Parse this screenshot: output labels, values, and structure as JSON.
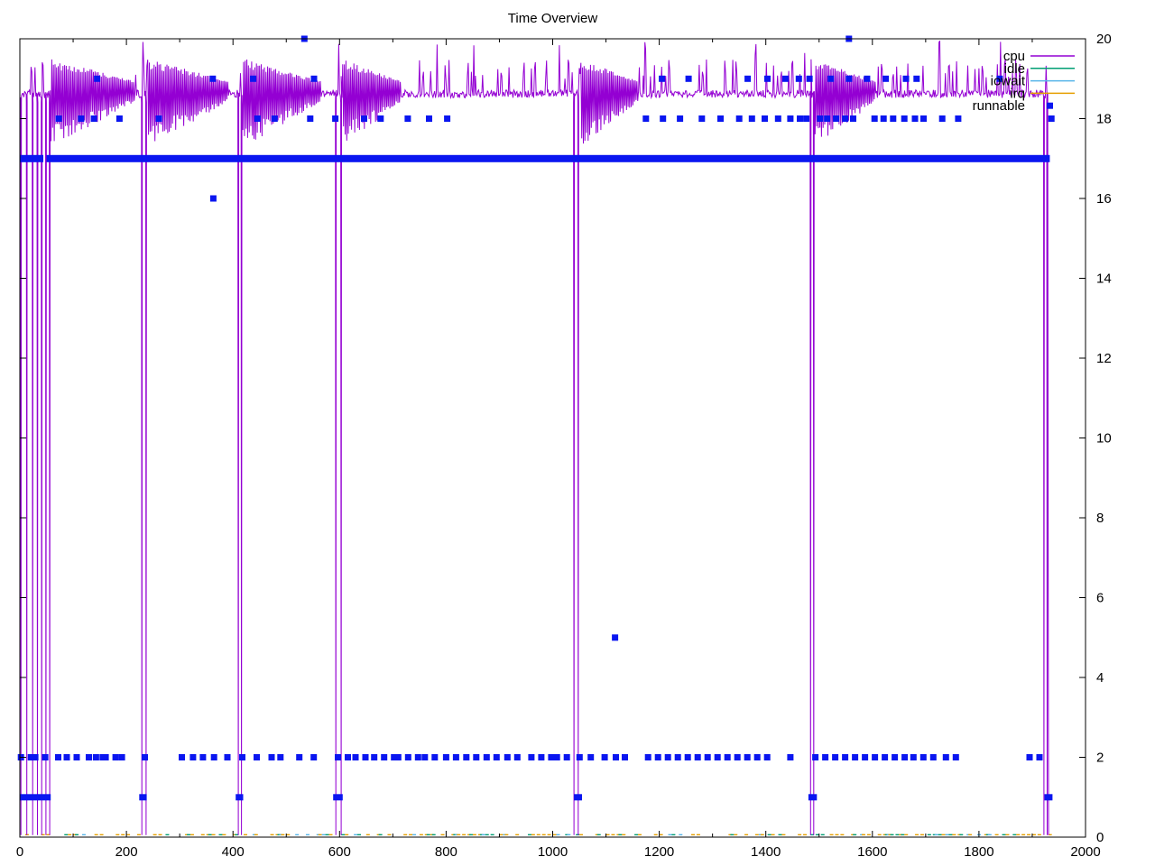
{
  "chart_data": {
    "type": "line+scatter",
    "title": "Time Overview",
    "xlabel": "",
    "ylabel": "",
    "xlim": [
      0,
      2000
    ],
    "ylim": [
      0,
      20
    ],
    "x_major_ticks": [
      0,
      200,
      400,
      600,
      800,
      1000,
      1200,
      1400,
      1600,
      1800,
      2000
    ],
    "x_minor_ticks": [
      100,
      300,
      500,
      700,
      900,
      1100,
      1300,
      1500,
      1700,
      1900
    ],
    "y_major_ticks": [
      0,
      2,
      4,
      6,
      8,
      10,
      12,
      14,
      16,
      18,
      20
    ],
    "y_labels_side": "right",
    "grid": false,
    "axis_color": "#000000",
    "text_color": "#000000",
    "legend": {
      "position": "top-right-inside",
      "entries": [
        {
          "label": "cpu",
          "color": "#9400d3",
          "sample": "line"
        },
        {
          "label": "idle",
          "color": "#009e73",
          "sample": "line"
        },
        {
          "label": "iowait",
          "color": "#56b4e9",
          "sample": "line"
        },
        {
          "label": "irq",
          "color": "#e69f00",
          "sample": "line"
        },
        {
          "label": "runnable",
          "color": "#0a16f0",
          "sample": "square"
        }
      ]
    },
    "series": {
      "cpu": {
        "type": "line",
        "color": "#9400d3",
        "x_end": 1930,
        "baseline": 18.6,
        "spike_top": 19.9,
        "dropouts": [
          2,
          13,
          24,
          33,
          41,
          49,
          56,
          229,
          237,
          410,
          416,
          593,
          603,
          1040,
          1048,
          1484,
          1490,
          1922,
          1928
        ],
        "bursts": [
          [
            58,
            215
          ],
          [
            240,
            390
          ],
          [
            418,
            565
          ],
          [
            606,
            715
          ],
          [
            1052,
            1160
          ],
          [
            1492,
            1605
          ]
        ],
        "burst_low": 17.3,
        "burst_high": 19.4
      },
      "idle": {
        "type": "line",
        "color": "#009e73",
        "approx_value": 0.05,
        "x_range": [
          0,
          1930
        ]
      },
      "iowait": {
        "type": "line",
        "color": "#56b4e9",
        "approx_value": 0.05,
        "x_range": [
          0,
          1930
        ]
      },
      "irq": {
        "type": "line",
        "color": "#e69f00",
        "approx_value": 0.05,
        "x_range": [
          0,
          1930
        ]
      },
      "runnable": {
        "type": "scatter",
        "color": "#0a16f0",
        "marker": "square",
        "marker_px": 7,
        "levels": [
          {
            "y": 20,
            "style": "points",
            "points": [
              534,
              1556
            ]
          },
          {
            "y": 19,
            "style": "points",
            "points": [
              145,
              362,
              438,
              552,
              1205,
              1255,
              1366,
              1403,
              1437,
              1462,
              1482,
              1522,
              1556,
              1590,
              1625,
              1663,
              1683,
              1839
            ]
          },
          {
            "y": 18,
            "style": "points",
            "points": [
              73,
              115,
              139,
              187,
              261,
              446,
              478,
              545,
              592,
              646,
              677,
              728,
              768,
              802,
              1175,
              1207,
              1239,
              1280,
              1315,
              1350,
              1374,
              1398,
              1423,
              1446,
              1464,
              1476,
              1502,
              1515,
              1532,
              1549,
              1564,
              1604,
              1621,
              1639,
              1660,
              1680,
              1696,
              1731,
              1761,
              1936
            ]
          },
          {
            "y": 17,
            "style": "solid-bar",
            "segments": [
              [
                0,
                44
              ],
              [
                50,
                1933
              ]
            ]
          },
          {
            "y": 16,
            "style": "points",
            "points": [
              363
            ]
          },
          {
            "y": 5,
            "style": "points",
            "points": [
              1117
            ]
          },
          {
            "y": 2,
            "style": "square-train",
            "segments": [
              [
                2,
                24
              ],
              [
                29,
                49
              ],
              [
                68,
                76
              ],
              [
                88,
                108
              ],
              [
                125,
                134
              ],
              [
                139,
                147
              ],
              [
                152,
                159
              ],
              [
                161,
                181
              ],
              [
                185,
                198
              ],
              [
                232,
                237
              ],
              [
                300,
                308
              ],
              [
                325,
                346
              ],
              [
                356,
                373
              ],
              [
                381,
                398
              ],
              [
                413,
                422
              ],
              [
                440,
                449
              ],
              [
                464,
                481
              ],
              [
                483,
                495
              ],
              [
                517,
                532
              ],
              [
                549,
                554
              ],
              [
                597,
                625
              ],
              [
                630,
                660
              ],
              [
                665,
                705
              ],
              [
                710,
                753
              ],
              [
                760,
                790
              ],
              [
                800,
                830
              ],
              [
                838,
                868
              ],
              [
                876,
                906
              ],
              [
                915,
                950
              ],
              [
                960,
                1000
              ],
              [
                1008,
                1040
              ],
              [
                1046,
                1055
              ],
              [
                1063,
                1080
              ],
              [
                1089,
                1106
              ],
              [
                1114,
                1123
              ],
              [
                1131,
                1140
              ],
              [
                1179,
                1420
              ],
              [
                1442,
                1450
              ],
              [
                1493,
                1669
              ],
              [
                1677,
                1720
              ],
              [
                1738,
                1767
              ],
              [
                1895,
                1917
              ]
            ]
          },
          {
            "y": 1,
            "style": "solid-bar",
            "segments": [
              [
                0,
                58
              ],
              [
                224,
                238
              ],
              [
                405,
                419
              ],
              [
                588,
                606
              ],
              [
                1040,
                1055
              ],
              [
                1480,
                1496
              ],
              [
                1923,
                1938
              ]
            ]
          }
        ]
      }
    }
  }
}
